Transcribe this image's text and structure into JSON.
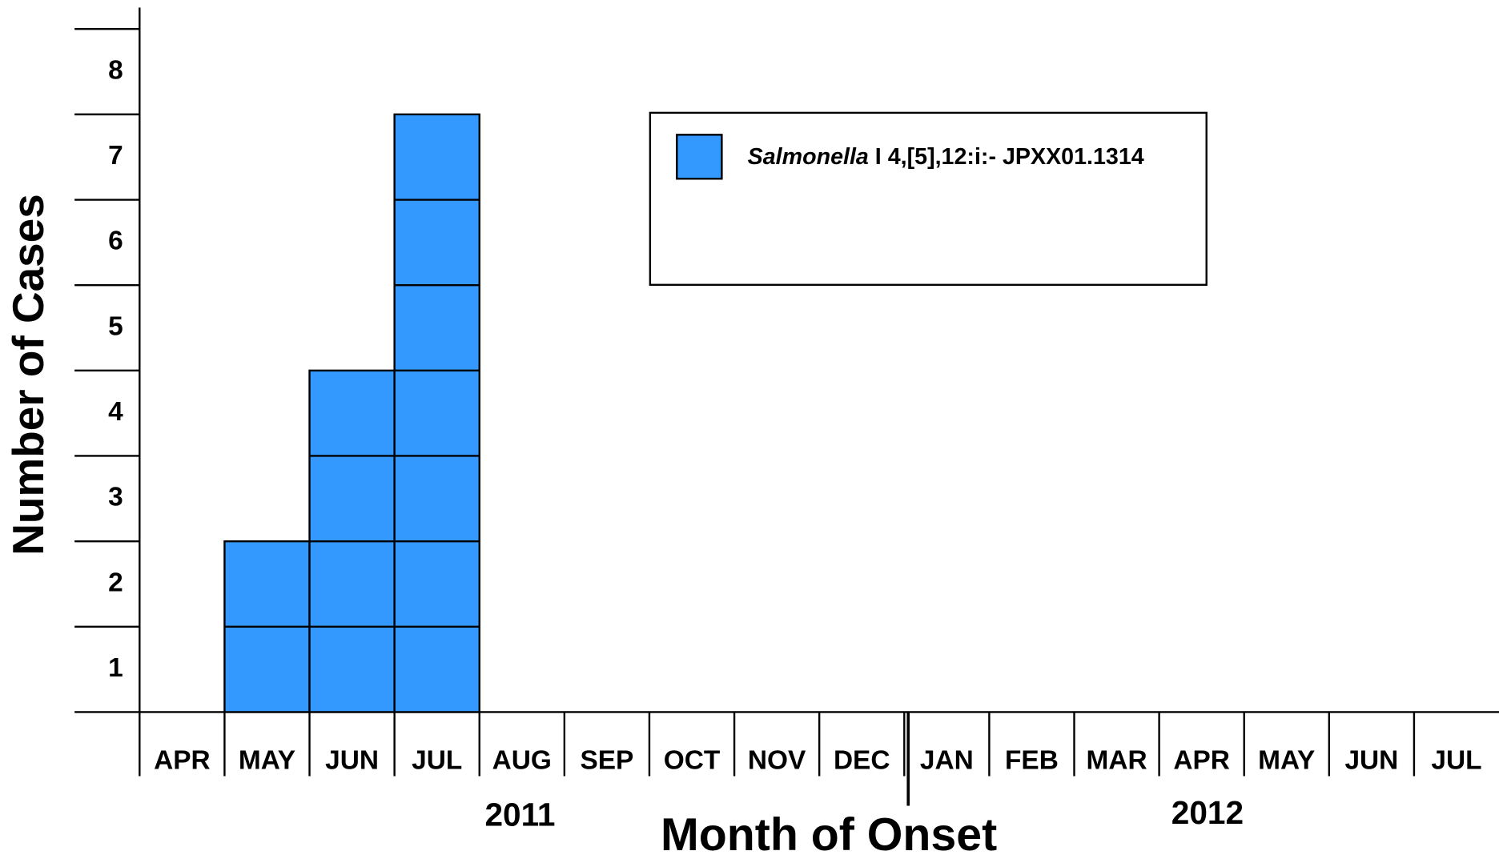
{
  "chart_data": {
    "type": "bar",
    "xlabel": "Month of Onset",
    "ylabel": "Number of Cases",
    "categories": [
      "APR",
      "MAY",
      "JUN",
      "JUL",
      "AUG",
      "SEP",
      "OCT",
      "NOV",
      "DEC",
      "JAN",
      "FEB",
      "MAR",
      "APR",
      "MAY",
      "JUN",
      "JUL"
    ],
    "year_labels": [
      "2011",
      "2012"
    ],
    "series": [
      {
        "name": "Salmonella I 4,[5],12:i:- JPXX01.1314",
        "color": "#3399ff",
        "values": [
          0,
          2,
          4,
          7,
          0,
          0,
          0,
          0,
          0,
          0,
          0,
          0,
          0,
          0,
          0,
          0
        ]
      }
    ],
    "ylim": [
      0,
      8.25
    ],
    "yticks": [
      1,
      2,
      3,
      4,
      5,
      6,
      7,
      8
    ],
    "legend": "upper right"
  }
}
